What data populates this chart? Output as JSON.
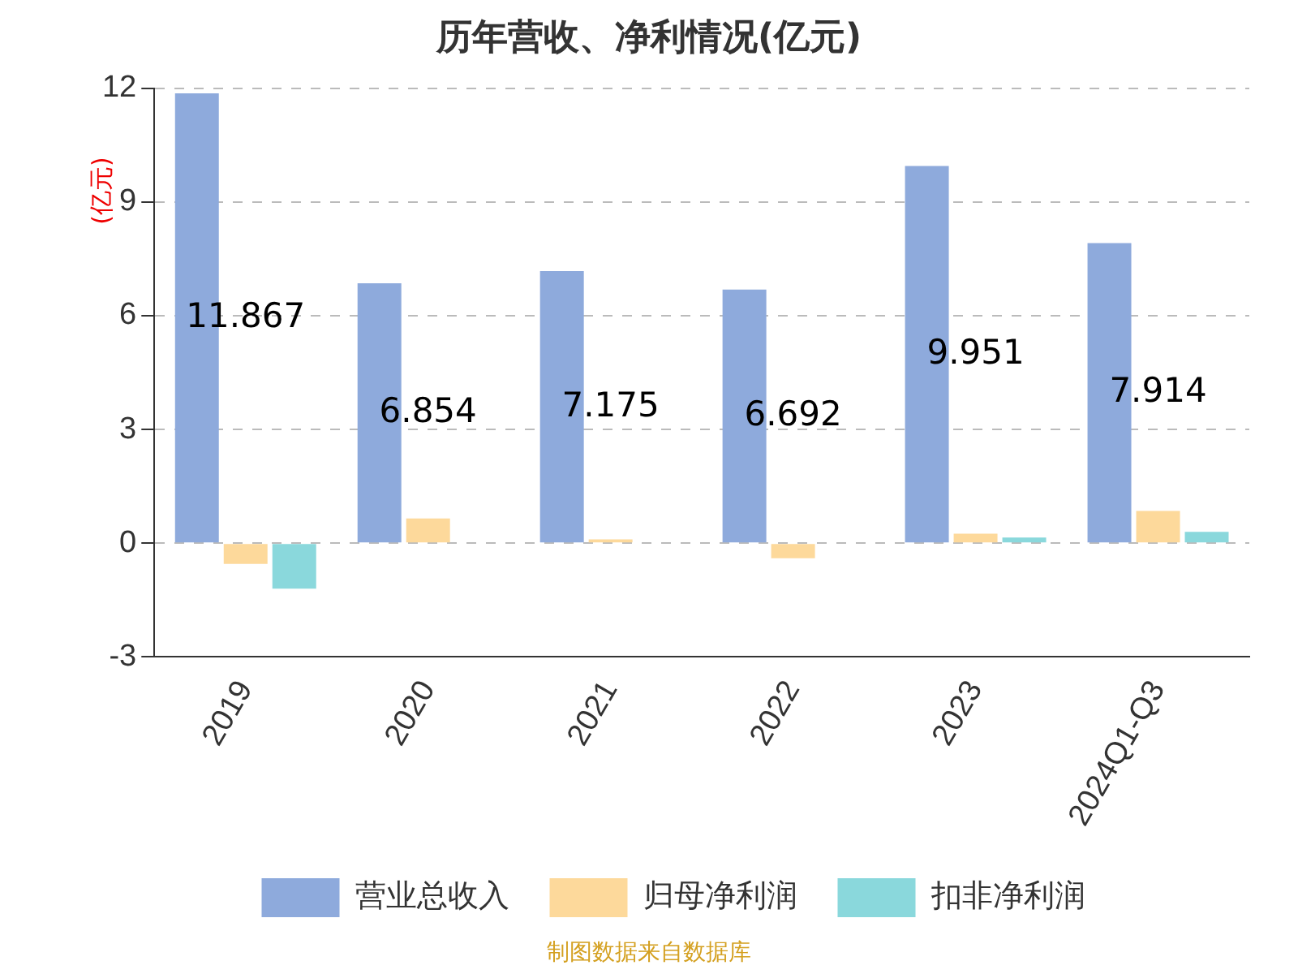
{
  "chart_data": {
    "type": "bar",
    "title": "历年营收、净利情况(亿元)",
    "ylabel": "(亿元)",
    "categories": [
      "2019",
      "2020",
      "2021",
      "2022",
      "2023",
      "2024Q1-Q3"
    ],
    "series": [
      {
        "name": "营业总收入",
        "color": "#8eaadc",
        "values": [
          11.867,
          6.854,
          7.175,
          6.692,
          9.951,
          7.914
        ],
        "value_labels": [
          "11.867",
          "6.854",
          "7.175",
          "6.692",
          "9.951",
          "7.914"
        ]
      },
      {
        "name": "归母净利润",
        "color": "#fdd99b",
        "values": [
          -0.55,
          0.65,
          0.1,
          -0.4,
          0.25,
          0.85
        ]
      },
      {
        "name": "扣非净利润",
        "color": "#8ad8dc",
        "values": [
          -1.2,
          0,
          0,
          0,
          0.15,
          0.3
        ]
      }
    ],
    "ylim": [
      -3,
      12
    ],
    "yticks": [
      -3,
      0,
      3,
      6,
      9,
      12
    ],
    "grid": "y",
    "legend": "bottom",
    "annotations": [
      "制图数据来自数据库"
    ]
  }
}
